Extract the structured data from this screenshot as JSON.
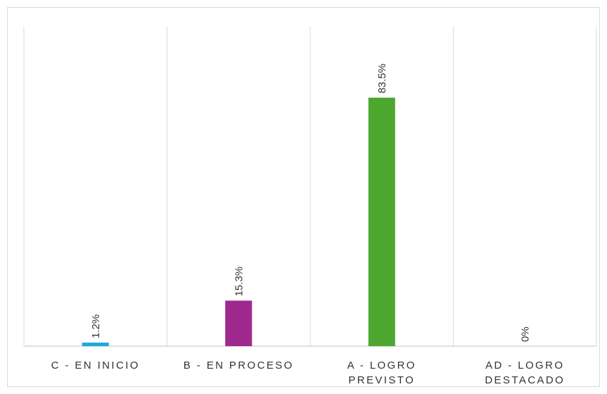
{
  "chart_data": {
    "type": "bar",
    "categories": [
      [
        "C - EN INICIO"
      ],
      [
        "B - EN PROCESO"
      ],
      [
        "A - LOGRO",
        "PREVISTO"
      ],
      [
        "AD - LOGRO",
        "DESTACADO"
      ]
    ],
    "values": [
      1.2,
      15.3,
      83.5,
      0
    ],
    "data_labels": [
      "1.2%",
      "15.3%",
      "83.5%",
      "0%"
    ],
    "colors": [
      "#1ba9e1",
      "#a0298f",
      "#4ea72e",
      "#7f7f7f"
    ],
    "ylim": [
      0,
      100
    ],
    "title": "",
    "xlabel": "",
    "ylabel": "",
    "grid": "vertical category separators",
    "legend": "none"
  }
}
